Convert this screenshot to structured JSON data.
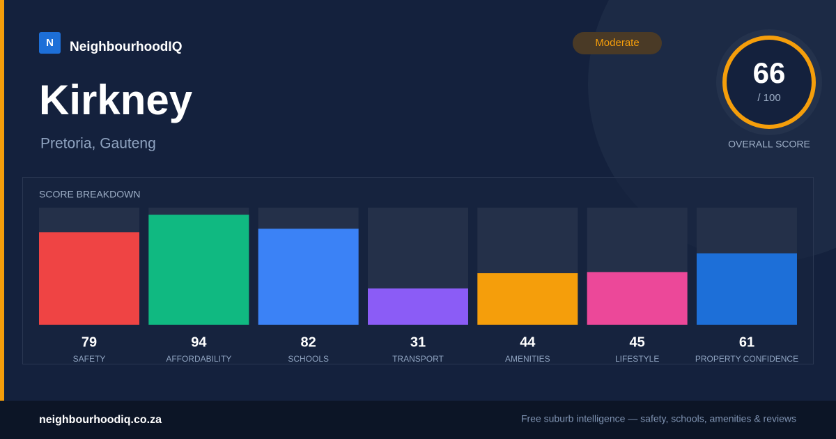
{
  "brand": {
    "logo_letter": "N",
    "name": "NeighbourhoodIQ"
  },
  "suburb": "Kirkney",
  "location": "Pretoria, Gauteng",
  "badge": "Moderate",
  "score": {
    "value": 66,
    "out_of": "/ 100",
    "label": "OVERALL SCORE"
  },
  "chart_data": {
    "type": "bar",
    "title": "SCORE BREAKDOWN",
    "categories": [
      "SAFETY",
      "AFFORDABILITY",
      "SCHOOLS",
      "TRANSPORT",
      "AMENITIES",
      "LIFESTYLE",
      "PROPERTY CONFIDENCE"
    ],
    "values": [
      79,
      94,
      82,
      31,
      44,
      45,
      61
    ],
    "colors": [
      "#ef4444",
      "#10b981",
      "#3b82f6",
      "#8b5cf6",
      "#f59e0b",
      "#ec4899",
      "#1d6fd8"
    ],
    "ylim": [
      0,
      100
    ]
  },
  "footer": {
    "domain": "neighbourhoodiq.co.za",
    "tagline": "Free suburb intelligence — safety, schools, amenities & reviews"
  }
}
